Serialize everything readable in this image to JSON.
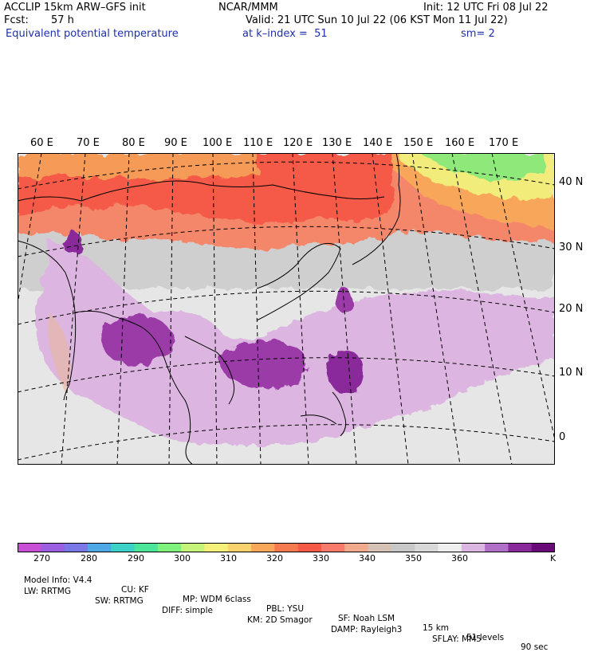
{
  "header": {
    "model": "ACCLIP 15km ARW–GFS init",
    "org": "NCAR/MMM",
    "init": "Init: 12 UTC Fri 08 Jul 22",
    "fcst_label": "Fcst:",
    "fcst_value": "57 h",
    "valid": "Valid: 21 UTC Sun 10 Jul 22 (06 KST Mon 11 Jul 22)",
    "field": "Equivalent potential temperature",
    "level": "at k–index =  51",
    "smooth": "sm= 2"
  },
  "map": {
    "lon_labels": [
      "60 E",
      "70 E",
      "80 E",
      "90 E",
      "100 E",
      "110 E",
      "120 E",
      "130 E",
      "140 E",
      "150 E",
      "160 E",
      "170 E"
    ],
    "lat_labels": [
      "40 N",
      "30 N",
      "20 N",
      "10 N",
      "0"
    ]
  },
  "colorbar": {
    "unit": "K",
    "labels": [
      "270",
      "280",
      "290",
      "300",
      "310",
      "320",
      "330",
      "340",
      "350",
      "360"
    ],
    "colors": [
      "#c84fd6",
      "#9a5ee0",
      "#7a78e6",
      "#4fa8e6",
      "#3cd2c8",
      "#4ce69a",
      "#7ef27c",
      "#c4f57a",
      "#f5f07a",
      "#fad26e",
      "#f7a65a",
      "#f57a50",
      "#f55a46",
      "#f77a6a",
      "#f2aa8c",
      "#d6c2b4",
      "#c8c8c8",
      "#d8d8d8",
      "#eeeeee",
      "#dcb6e0",
      "#b070c8",
      "#8a2a9a",
      "#6a0a78"
    ]
  },
  "footer": {
    "line1": [
      "Model Info: V4.4",
      "CU: KF",
      "MP: WDM 6class",
      "PBL: YSU",
      "SF: Noah LSM",
      "15 km",
      "51 levels",
      "90 sec"
    ],
    "line2": [
      "LW: RRTMG",
      "SW: RRTMG",
      "DIFF: simple",
      "KM: 2D Smagor",
      "DAMP: Rayleigh3",
      "SFLAY: MM5"
    ]
  }
}
